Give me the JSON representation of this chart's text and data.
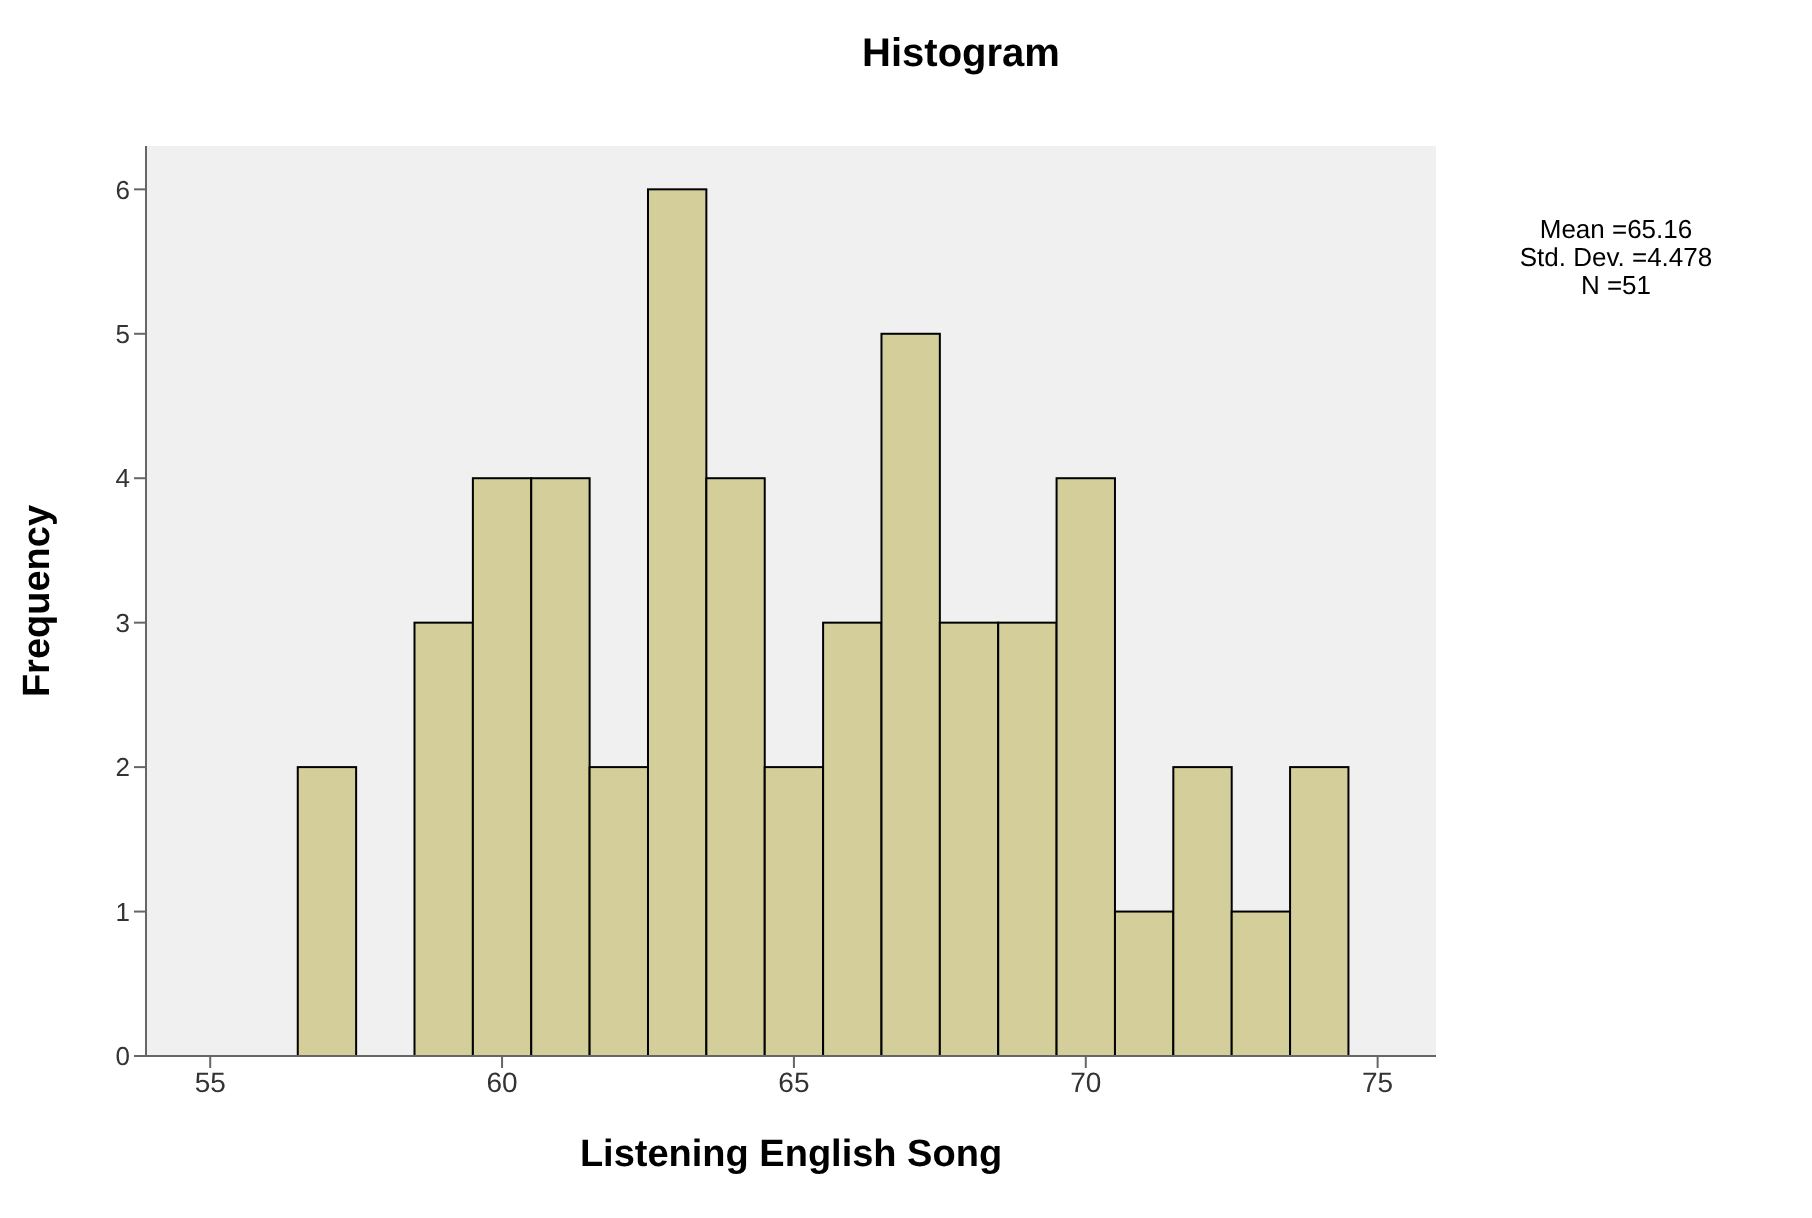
{
  "chart_data": {
    "type": "histogram",
    "title": "Histogram",
    "xlabel": "Listening English Song",
    "ylabel": "Frequency",
    "bins": [
      56.5,
      57.5,
      58.5,
      59.5,
      60.5,
      61.5,
      62.5,
      63.5,
      64.5,
      65.5,
      66.5,
      67.5,
      68.5,
      69.5,
      70.5,
      71.5,
      72.5,
      73.5,
      74.5
    ],
    "values": [
      2,
      0,
      3,
      4,
      4,
      2,
      6,
      4,
      2,
      3,
      5,
      3,
      3,
      4,
      1,
      2,
      1,
      2
    ],
    "color": "#d4cf9a",
    "xlim": [
      53.9,
      76
    ],
    "xticks": [
      55,
      60,
      65,
      70,
      75
    ],
    "ylim": [
      0,
      6.3
    ],
    "yticks": [
      0,
      1,
      2,
      3,
      4,
      5,
      6
    ],
    "grid": false,
    "annotations": [
      "Mean =65.16",
      "Std. Dev. =4.478",
      "N =51"
    ]
  }
}
